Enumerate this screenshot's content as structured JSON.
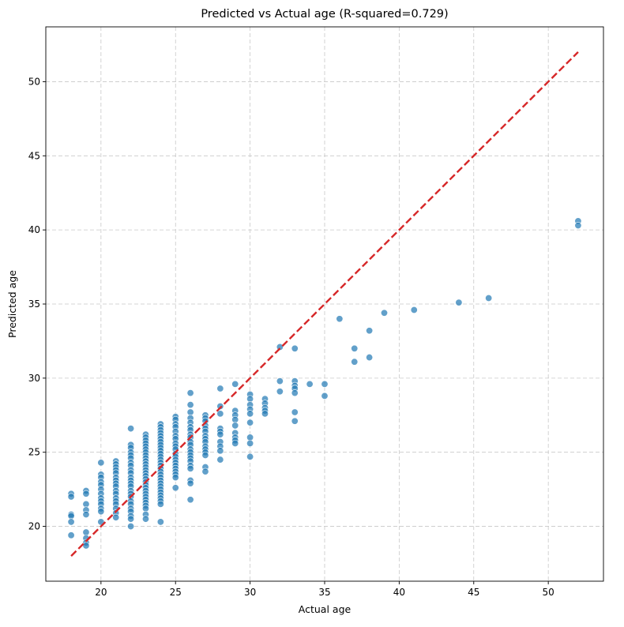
{
  "chart_data": {
    "type": "scatter",
    "title": "Predicted vs Actual age (R-squared=0.729)",
    "xlabel": "Actual age",
    "ylabel": "Predicted age",
    "xlim": [
      16.3,
      53.7
    ],
    "ylim": [
      16.3,
      53.7
    ],
    "x_ticks": [
      20,
      25,
      30,
      35,
      40,
      45,
      50
    ],
    "y_ticks": [
      20,
      25,
      30,
      35,
      40,
      45,
      50
    ],
    "grid": true,
    "legend": "none",
    "point_color": "#1f77b4",
    "line_color": "#d62728",
    "reference_line": {
      "style": "dashed",
      "from": [
        18,
        18
      ],
      "to": [
        52,
        52
      ]
    },
    "points": [
      [
        18,
        22.2
      ],
      [
        18,
        22.0
      ],
      [
        18,
        20.8
      ],
      [
        18,
        20.7
      ],
      [
        18,
        20.3
      ],
      [
        18,
        19.4
      ],
      [
        19,
        22.4
      ],
      [
        19,
        22.2
      ],
      [
        19,
        21.5
      ],
      [
        19,
        21.1
      ],
      [
        19,
        20.8
      ],
      [
        19,
        19.6
      ],
      [
        19,
        19.2
      ],
      [
        19,
        18.9
      ],
      [
        19,
        18.7
      ],
      [
        20,
        24.3
      ],
      [
        20,
        23.5
      ],
      [
        20,
        23.3
      ],
      [
        20,
        23.0
      ],
      [
        20,
        22.8
      ],
      [
        20,
        22.5
      ],
      [
        20,
        22.2
      ],
      [
        20,
        21.9
      ],
      [
        20,
        21.7
      ],
      [
        20,
        21.5
      ],
      [
        20,
        21.2
      ],
      [
        20,
        21.0
      ],
      [
        20,
        20.3
      ],
      [
        21,
        24.4
      ],
      [
        21,
        24.2
      ],
      [
        21,
        24.0
      ],
      [
        21,
        23.8
      ],
      [
        21,
        23.6
      ],
      [
        21,
        23.3
      ],
      [
        21,
        23.1
      ],
      [
        21,
        22.9
      ],
      [
        21,
        22.7
      ],
      [
        21,
        22.4
      ],
      [
        21,
        22.2
      ],
      [
        21,
        21.9
      ],
      [
        21,
        21.7
      ],
      [
        21,
        21.5
      ],
      [
        21,
        21.2
      ],
      [
        21,
        20.9
      ],
      [
        21,
        20.6
      ],
      [
        22,
        26.6
      ],
      [
        22,
        25.5
      ],
      [
        22,
        25.3
      ],
      [
        22,
        25.0
      ],
      [
        22,
        24.8
      ],
      [
        22,
        24.6
      ],
      [
        22,
        24.3
      ],
      [
        22,
        24.1
      ],
      [
        22,
        23.8
      ],
      [
        22,
        23.6
      ],
      [
        22,
        23.3
      ],
      [
        22,
        23.1
      ],
      [
        22,
        22.9
      ],
      [
        22,
        22.7
      ],
      [
        22,
        22.4
      ],
      [
        22,
        22.2
      ],
      [
        22,
        22.0
      ],
      [
        22,
        21.7
      ],
      [
        22,
        21.5
      ],
      [
        22,
        21.2
      ],
      [
        22,
        21.0
      ],
      [
        22,
        20.7
      ],
      [
        22,
        20.5
      ],
      [
        22,
        20.0
      ],
      [
        23,
        26.2
      ],
      [
        23,
        26.0
      ],
      [
        23,
        25.8
      ],
      [
        23,
        25.6
      ],
      [
        23,
        25.4
      ],
      [
        23,
        25.2
      ],
      [
        23,
        25.0
      ],
      [
        23,
        24.8
      ],
      [
        23,
        24.6
      ],
      [
        23,
        24.4
      ],
      [
        23,
        24.2
      ],
      [
        23,
        24.0
      ],
      [
        23,
        23.8
      ],
      [
        23,
        23.6
      ],
      [
        23,
        23.4
      ],
      [
        23,
        23.2
      ],
      [
        23,
        23.0
      ],
      [
        23,
        22.8
      ],
      [
        23,
        22.6
      ],
      [
        23,
        22.4
      ],
      [
        23,
        22.2
      ],
      [
        23,
        22.0
      ],
      [
        23,
        21.8
      ],
      [
        23,
        21.6
      ],
      [
        23,
        21.4
      ],
      [
        23,
        21.2
      ],
      [
        23,
        20.8
      ],
      [
        23,
        20.5
      ],
      [
        24,
        26.9
      ],
      [
        24,
        26.7
      ],
      [
        24,
        26.5
      ],
      [
        24,
        26.3
      ],
      [
        24,
        26.1
      ],
      [
        24,
        25.9
      ],
      [
        24,
        25.7
      ],
      [
        24,
        25.5
      ],
      [
        24,
        25.3
      ],
      [
        24,
        25.1
      ],
      [
        24,
        24.9
      ],
      [
        24,
        24.7
      ],
      [
        24,
        24.5
      ],
      [
        24,
        24.3
      ],
      [
        24,
        24.1
      ],
      [
        24,
        23.9
      ],
      [
        24,
        23.7
      ],
      [
        24,
        23.5
      ],
      [
        24,
        23.3
      ],
      [
        24,
        23.1
      ],
      [
        24,
        22.9
      ],
      [
        24,
        22.7
      ],
      [
        24,
        22.5
      ],
      [
        24,
        22.3
      ],
      [
        24,
        22.1
      ],
      [
        24,
        21.9
      ],
      [
        24,
        21.7
      ],
      [
        24,
        21.5
      ],
      [
        24,
        20.3
      ],
      [
        25,
        27.4
      ],
      [
        25,
        27.2
      ],
      [
        25,
        26.9
      ],
      [
        25,
        26.7
      ],
      [
        25,
        26.4
      ],
      [
        25,
        26.1
      ],
      [
        25,
        25.9
      ],
      [
        25,
        25.6
      ],
      [
        25,
        25.4
      ],
      [
        25,
        25.2
      ],
      [
        25,
        24.9
      ],
      [
        25,
        24.7
      ],
      [
        25,
        24.5
      ],
      [
        25,
        24.3
      ],
      [
        25,
        24.1
      ],
      [
        25,
        23.9
      ],
      [
        25,
        23.7
      ],
      [
        25,
        23.5
      ],
      [
        25,
        23.3
      ],
      [
        25,
        22.6
      ],
      [
        26,
        29.0
      ],
      [
        26,
        28.2
      ],
      [
        26,
        27.7
      ],
      [
        26,
        27.3
      ],
      [
        26,
        27.0
      ],
      [
        26,
        26.7
      ],
      [
        26,
        26.5
      ],
      [
        26,
        26.2
      ],
      [
        26,
        26.0
      ],
      [
        26,
        25.7
      ],
      [
        26,
        25.5
      ],
      [
        26,
        25.2
      ],
      [
        26,
        25.0
      ],
      [
        26,
        24.8
      ],
      [
        26,
        24.6
      ],
      [
        26,
        24.4
      ],
      [
        26,
        24.1
      ],
      [
        26,
        23.9
      ],
      [
        26,
        23.1
      ],
      [
        26,
        22.9
      ],
      [
        26,
        21.8
      ],
      [
        27,
        27.5
      ],
      [
        27,
        27.3
      ],
      [
        27,
        27.1
      ],
      [
        27,
        26.8
      ],
      [
        27,
        26.6
      ],
      [
        27,
        26.4
      ],
      [
        27,
        26.1
      ],
      [
        27,
        25.9
      ],
      [
        27,
        25.7
      ],
      [
        27,
        25.4
      ],
      [
        27,
        25.2
      ],
      [
        27,
        25.0
      ],
      [
        27,
        24.8
      ],
      [
        27,
        24.0
      ],
      [
        27,
        23.7
      ],
      [
        28,
        29.3
      ],
      [
        28,
        28.1
      ],
      [
        28,
        27.6
      ],
      [
        28,
        26.6
      ],
      [
        28,
        26.4
      ],
      [
        28,
        26.2
      ],
      [
        28,
        25.7
      ],
      [
        28,
        25.4
      ],
      [
        28,
        25.1
      ],
      [
        28,
        24.5
      ],
      [
        29,
        29.6
      ],
      [
        29,
        27.8
      ],
      [
        29,
        27.5
      ],
      [
        29,
        27.2
      ],
      [
        29,
        26.8
      ],
      [
        29,
        26.3
      ],
      [
        29,
        26.0
      ],
      [
        29,
        25.8
      ],
      [
        29,
        25.6
      ],
      [
        30,
        28.9
      ],
      [
        30,
        28.6
      ],
      [
        30,
        28.2
      ],
      [
        30,
        27.9
      ],
      [
        30,
        27.6
      ],
      [
        30,
        27.0
      ],
      [
        30,
        26.0
      ],
      [
        30,
        25.6
      ],
      [
        30,
        24.7
      ],
      [
        31,
        28.6
      ],
      [
        31,
        28.3
      ],
      [
        31,
        28.0
      ],
      [
        31,
        27.8
      ],
      [
        31,
        27.6
      ],
      [
        32,
        32.1
      ],
      [
        32,
        29.8
      ],
      [
        32,
        29.1
      ],
      [
        33,
        32.0
      ],
      [
        33,
        29.8
      ],
      [
        33,
        29.5
      ],
      [
        33,
        29.3
      ],
      [
        33,
        29.0
      ],
      [
        33,
        27.7
      ],
      [
        33,
        27.1
      ],
      [
        34,
        29.6
      ],
      [
        35,
        29.6
      ],
      [
        35,
        28.8
      ],
      [
        36,
        34.0
      ],
      [
        37,
        32.0
      ],
      [
        37,
        31.1
      ],
      [
        38,
        33.2
      ],
      [
        38,
        31.4
      ],
      [
        39,
        34.4
      ],
      [
        41,
        34.6
      ],
      [
        44,
        35.1
      ],
      [
        46,
        35.4
      ],
      [
        52,
        40.6
      ],
      [
        52,
        40.3
      ]
    ]
  }
}
